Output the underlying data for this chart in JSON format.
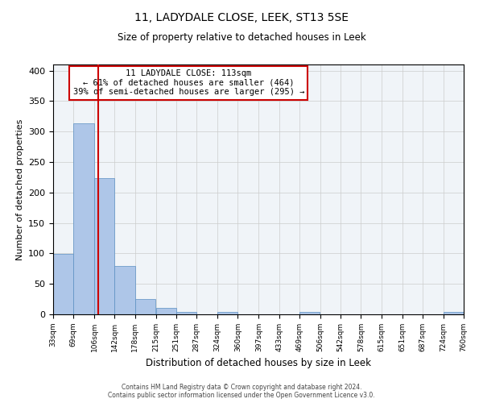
{
  "title": "11, LADYDALE CLOSE, LEEK, ST13 5SE",
  "subtitle": "Size of property relative to detached houses in Leek",
  "xlabel": "Distribution of detached houses by size in Leek",
  "ylabel": "Number of detached properties",
  "bin_edges": [
    33,
    69,
    106,
    142,
    178,
    215,
    251,
    287,
    324,
    360,
    397,
    433,
    469,
    506,
    542,
    578,
    615,
    651,
    687,
    724,
    760
  ],
  "bar_heights": [
    99,
    314,
    224,
    80,
    25,
    11,
    4,
    0,
    4,
    0,
    0,
    0,
    4,
    0,
    0,
    0,
    0,
    0,
    0,
    4
  ],
  "bar_color": "#aec6e8",
  "bar_edge_color": "#5a8fc2",
  "property_size": 113,
  "vline_color": "#cc0000",
  "annotation_text": "11 LADYDALE CLOSE: 113sqm\n← 61% of detached houses are smaller (464)\n39% of semi-detached houses are larger (295) →",
  "annotation_box_color": "#cc0000",
  "ylim": [
    0,
    410
  ],
  "yticks": [
    0,
    50,
    100,
    150,
    200,
    250,
    300,
    350,
    400
  ],
  "grid_color": "#cccccc",
  "bg_color": "#f0f4f8",
  "footer_line1": "Contains HM Land Registry data © Crown copyright and database right 2024.",
  "footer_line2": "Contains public sector information licensed under the Open Government Licence v3.0."
}
